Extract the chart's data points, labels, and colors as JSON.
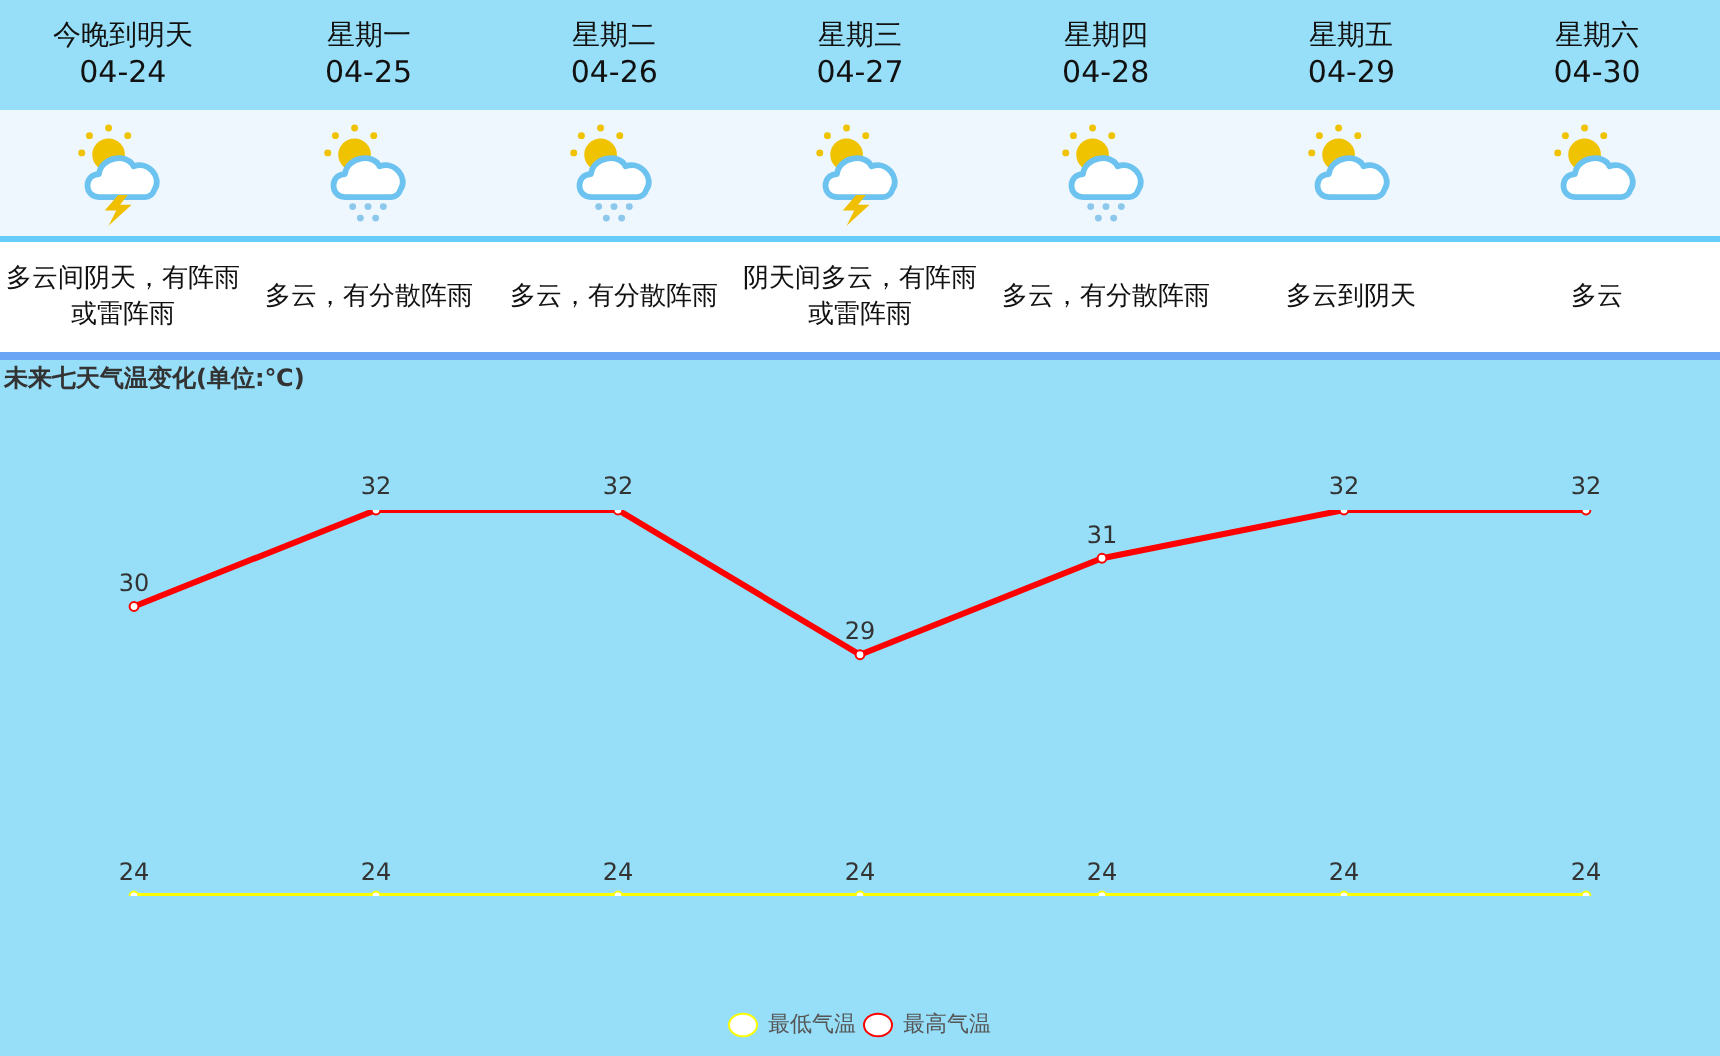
{
  "chart_data": [
    {
      "type": "other",
      "annotations": [
        "今晚到明天",
        "星期一",
        "星期二",
        "星期三",
        "星期四",
        "星期五",
        "星期六",
        "04-24",
        "04-25",
        "04-26",
        "04-27",
        "04-28",
        "04-29",
        "04-30",
        "多云间阴天，有阵雨或雷阵雨",
        "多云，有分散阵雨",
        "多云，有分散阵雨",
        "阴天间多云，有阵雨或雷阵雨",
        "多云，有分散阵雨",
        "多云到阴天",
        "多云"
      ]
    },
    {
      "type": "line",
      "title": "未来七天气温变化(单位:℃)",
      "categories": [
        null,
        null,
        null,
        null,
        null,
        null,
        null
      ],
      "series": [
        {
          "name": "最低气温",
          "color": "#ffff00",
          "values": [
            24,
            24,
            24,
            24,
            24,
            24,
            24
          ]
        },
        {
          "name": "最高气温",
          "color": "#ff0000",
          "values": [
            30,
            32,
            32,
            29,
            31,
            32,
            32
          ]
        }
      ],
      "data_labels": true,
      "legend": "bottom",
      "tick_labels": false,
      "marker": "circle"
    }
  ]
}
